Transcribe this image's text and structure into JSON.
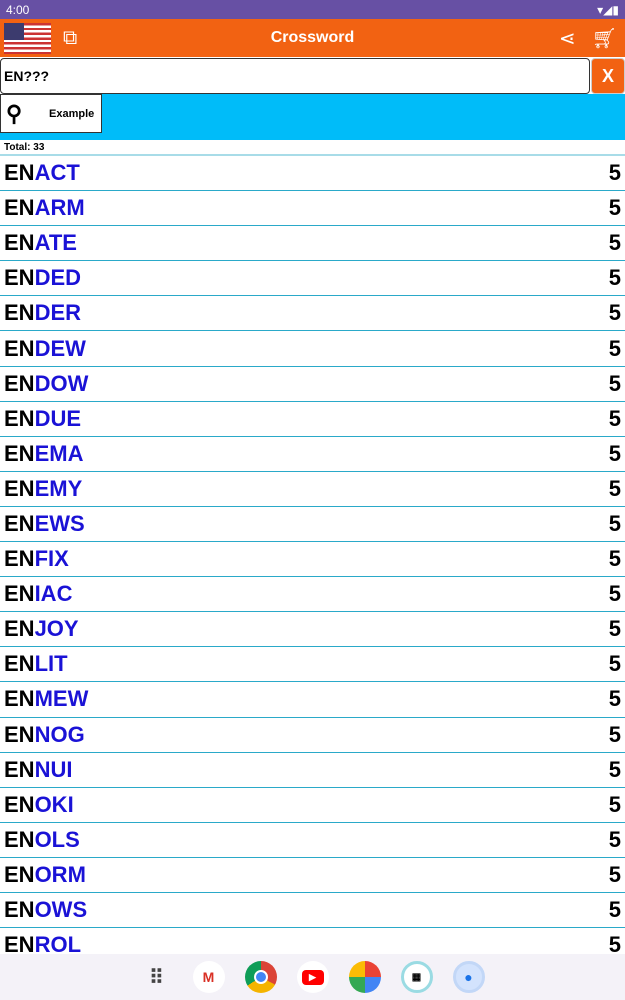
{
  "status": {
    "time": "4:00",
    "icons": [
      "wifi-icon",
      "signal-icon",
      "battery-icon"
    ]
  },
  "appbar": {
    "title": "Crossword",
    "icons": [
      "us-flag-icon",
      "copy-icon",
      "share-icon",
      "cart-icon"
    ]
  },
  "search": {
    "value": "EN???",
    "clear_label": "X"
  },
  "example": {
    "label": "Example"
  },
  "total": "Total: 33",
  "rows": [
    {
      "pre": "EN",
      "suf": "ACT",
      "n": "5"
    },
    {
      "pre": "EN",
      "suf": "ARM",
      "n": "5"
    },
    {
      "pre": "EN",
      "suf": "ATE",
      "n": "5"
    },
    {
      "pre": "EN",
      "suf": "DED",
      "n": "5"
    },
    {
      "pre": "EN",
      "suf": "DER",
      "n": "5"
    },
    {
      "pre": "EN",
      "suf": "DEW",
      "n": "5"
    },
    {
      "pre": "EN",
      "suf": "DOW",
      "n": "5"
    },
    {
      "pre": "EN",
      "suf": "DUE",
      "n": "5"
    },
    {
      "pre": "EN",
      "suf": "EMA",
      "n": "5"
    },
    {
      "pre": "EN",
      "suf": "EMY",
      "n": "5"
    },
    {
      "pre": "EN",
      "suf": "EWS",
      "n": "5"
    },
    {
      "pre": "EN",
      "suf": "FIX",
      "n": "5"
    },
    {
      "pre": "EN",
      "suf": "IAC",
      "n": "5"
    },
    {
      "pre": "EN",
      "suf": "JOY",
      "n": "5"
    },
    {
      "pre": "EN",
      "suf": "LIT",
      "n": "5"
    },
    {
      "pre": "EN",
      "suf": "MEW",
      "n": "5"
    },
    {
      "pre": "EN",
      "suf": "NOG",
      "n": "5"
    },
    {
      "pre": "EN",
      "suf": "NUI",
      "n": "5"
    },
    {
      "pre": "EN",
      "suf": "OKI",
      "n": "5"
    },
    {
      "pre": "EN",
      "suf": "OLS",
      "n": "5"
    },
    {
      "pre": "EN",
      "suf": "ORM",
      "n": "5"
    },
    {
      "pre": "EN",
      "suf": "OWS",
      "n": "5"
    },
    {
      "pre": "EN",
      "suf": "ROL",
      "n": "5"
    }
  ],
  "colors": {
    "appbar": "#f26212",
    "status": "#6750a4",
    "example_bar": "#00bcf9",
    "suffix": "#1a12d6"
  },
  "taskbar": [
    "apps-icon",
    "gmail-icon",
    "chrome-icon",
    "youtube-icon",
    "photos-icon",
    "crossword-app-icon",
    "messages-icon"
  ]
}
